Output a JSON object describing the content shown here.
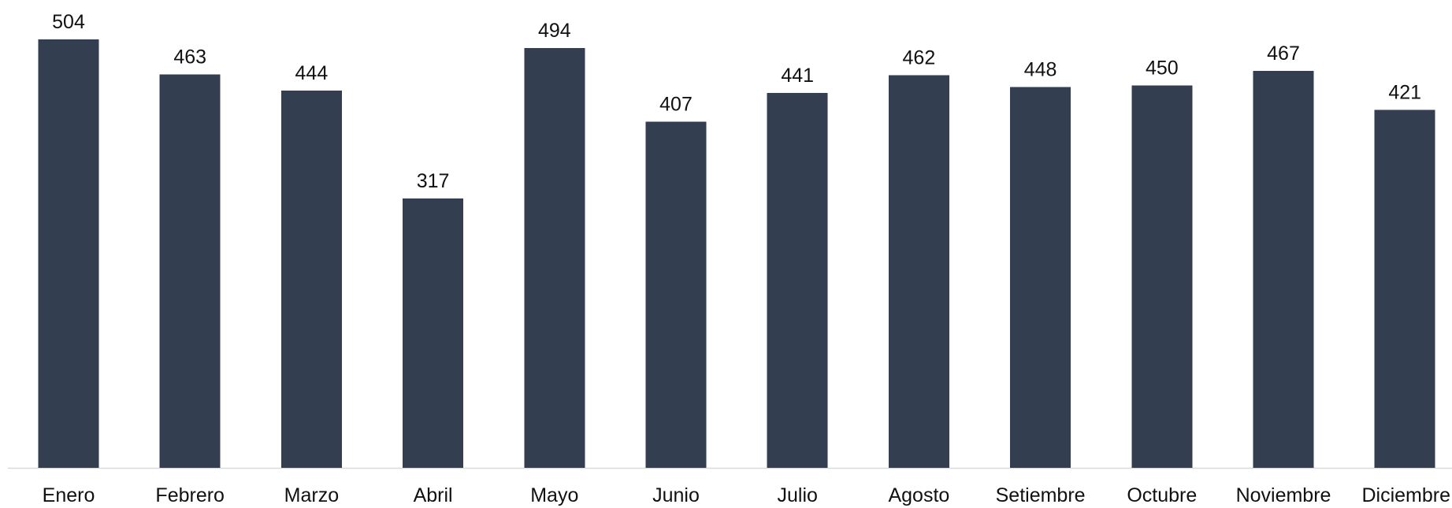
{
  "chart_data": {
    "type": "bar",
    "categories": [
      "Enero",
      "Febrero",
      "Marzo",
      "Abril",
      "Mayo",
      "Junio",
      "Julio",
      "Agosto",
      "Setiembre",
      "Octubre",
      "Noviembre",
      "Diciembre"
    ],
    "values": [
      504,
      463,
      444,
      317,
      494,
      407,
      441,
      462,
      448,
      450,
      467,
      421
    ],
    "title": "",
    "xlabel": "",
    "ylabel": "",
    "ylim": [
      0,
      504
    ],
    "grid": false,
    "legend": "none",
    "bar_color": "#333f50",
    "data_labels": true
  }
}
